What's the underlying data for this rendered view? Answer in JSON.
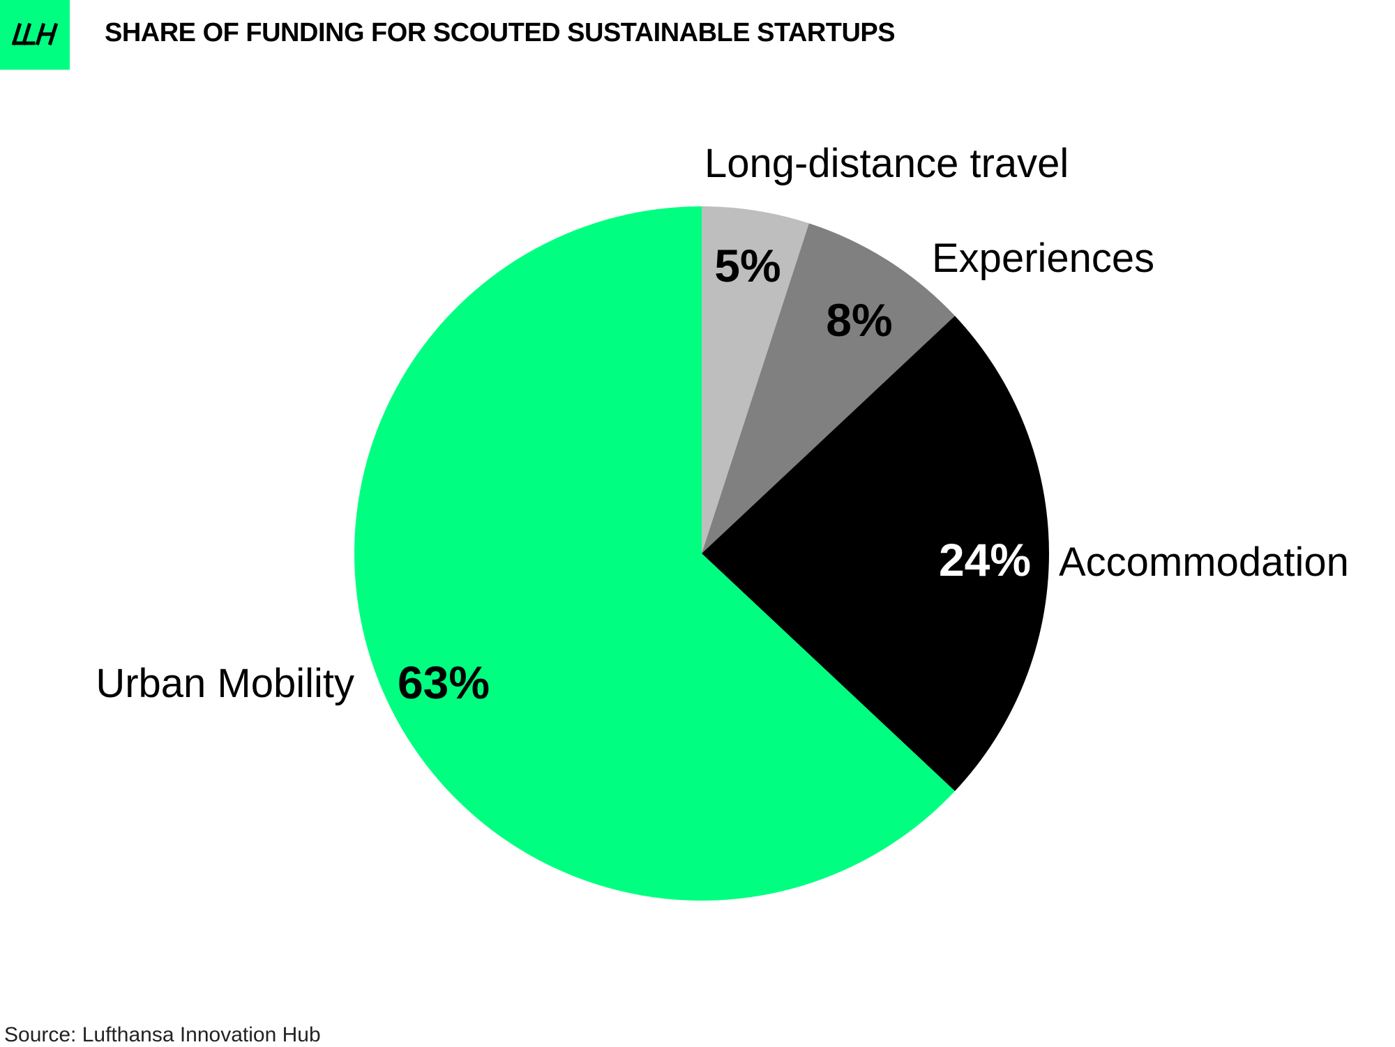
{
  "brand": {
    "logo_text": "LH",
    "accent_color": "#00FF80"
  },
  "source": "Source: Lufthansa Innovation Hub",
  "chart_data": {
    "type": "pie",
    "title": "SHARE OF FUNDING FOR SCOUTED SUSTAINABLE STARTUPS",
    "start": "12 o'clock",
    "direction": "clockwise",
    "slices": [
      {
        "label": "Long-distance travel",
        "value": 5,
        "value_label": "5%",
        "color": "#BEBEBE",
        "text_color": "#000000"
      },
      {
        "label": "Experiences",
        "value": 8,
        "value_label": "8%",
        "color": "#808080",
        "text_color": "#000000"
      },
      {
        "label": "Accommodation",
        "value": 24,
        "value_label": "24%",
        "color": "#000000",
        "text_color": "#FFFFFF"
      },
      {
        "label": "Urban Mobility",
        "value": 63,
        "value_label": "63%",
        "color": "#00FF80",
        "text_color": "#000000"
      }
    ]
  }
}
